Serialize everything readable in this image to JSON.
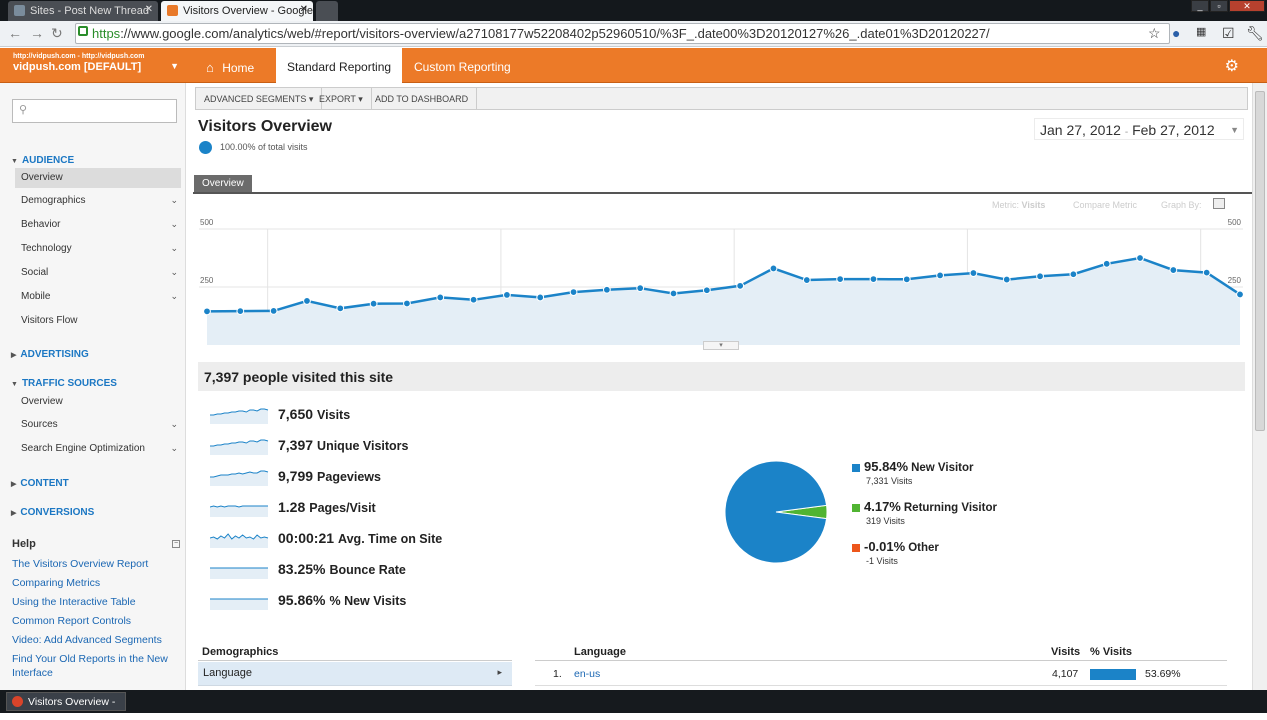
{
  "browser": {
    "tabs": [
      {
        "title": "Sites - Post New Thread",
        "active": false
      },
      {
        "title": "Visitors Overview - Google A",
        "active": true
      }
    ],
    "url_scheme": "https",
    "url_rest": "://www.google.com/analytics/web/#report/visitors-overview/a27108177w52208402p52960510/%3F_.date00%3D20120127%26_.date01%3D20120227/"
  },
  "account": {
    "urls": "http://vidpush.com - http://vidpush.com",
    "name": "vidpush.com [DEFAULT]"
  },
  "topnav": {
    "home": "Home",
    "standard": "Standard Reporting",
    "custom": "Custom Reporting"
  },
  "sidebar": {
    "audience": "AUDIENCE",
    "audience_items": [
      "Overview",
      "Demographics",
      "Behavior",
      "Technology",
      "Social",
      "Mobile",
      "Visitors Flow"
    ],
    "advertising": "ADVERTISING",
    "traffic": "TRAFFIC SOURCES",
    "traffic_items": [
      "Overview",
      "Sources",
      "Search Engine Optimization"
    ],
    "content": "CONTENT",
    "conversions": "CONVERSIONS",
    "help_title": "Help",
    "help_links": [
      "The Visitors Overview Report",
      "Comparing Metrics",
      "Using the Interactive Table",
      "Common Report Controls",
      "Video: Add Advanced Segments",
      "Find Your Old Reports in the New Interface"
    ]
  },
  "toolbar": {
    "segments": "ADVANCED SEGMENTS",
    "export": "EXPORT",
    "dashboard": "ADD TO DASHBOARD"
  },
  "report": {
    "title": "Visitors Overview",
    "pct_total": "100.00% of total visits",
    "date_start": "Jan 27, 2012",
    "date_sep": "-",
    "date_end": "Feb 27, 2012",
    "tab": "Overview",
    "metric_label": "Metric:",
    "metric_value": "Visits",
    "compare": "Compare Metric",
    "graph_by": "Graph By:",
    "people": "7,397 people visited this site"
  },
  "chart_data": {
    "type": "area",
    "series": [
      {
        "name": "Visits",
        "values": [
          145,
          146,
          147,
          190,
          158,
          178,
          179,
          205,
          195,
          216,
          205,
          228,
          238,
          245,
          222,
          236,
          255,
          330,
          280,
          284,
          284,
          283,
          300,
          310,
          282,
          296,
          305,
          350,
          375,
          323,
          312,
          218
        ]
      }
    ],
    "y_ticks": [
      "250",
      "500"
    ],
    "ylim": [
      0,
      500
    ],
    "x_tick_labels": [
      "Jan 29",
      "Feb 5",
      "Feb 12",
      "Feb 19",
      "Feb 26"
    ],
    "x_tick_index": [
      2,
      9,
      16,
      23,
      30
    ],
    "color": "#1b83c8"
  },
  "metrics": [
    {
      "value": "7,650",
      "label": "Visits"
    },
    {
      "value": "7,397",
      "label": "Unique Visitors"
    },
    {
      "value": "9,799",
      "label": "Pageviews"
    },
    {
      "value": "1.28",
      "label": "Pages/Visit"
    },
    {
      "value": "00:00:21",
      "label": "Avg. Time on Site"
    },
    {
      "value": "83.25%",
      "label": "Bounce Rate"
    },
    {
      "value": "95.86%",
      "label": "% New Visits"
    }
  ],
  "pie": [
    {
      "pct": "95.84%",
      "name": "New Visitor",
      "sub": "7,331 Visits",
      "color": "#1b83c8",
      "value": 95.84
    },
    {
      "pct": "4.17%",
      "name": "Returning Visitor",
      "sub": "319 Visits",
      "color": "#50b432",
      "value": 4.17
    },
    {
      "pct": "-0.01%",
      "name": "Other",
      "sub": "-1 Visits",
      "color": "#ed561b",
      "value": 0
    }
  ],
  "demographics": {
    "title": "Demographics",
    "row": "Language"
  },
  "language_table": {
    "header": "Language",
    "col_visits": "Visits",
    "col_pct": "% Visits",
    "rows": [
      {
        "rank": "1.",
        "lang": "en-us",
        "visits": "4,107",
        "pct": "53.69%"
      }
    ]
  },
  "taskbar": {
    "item": "Visitors Overview - ..."
  }
}
